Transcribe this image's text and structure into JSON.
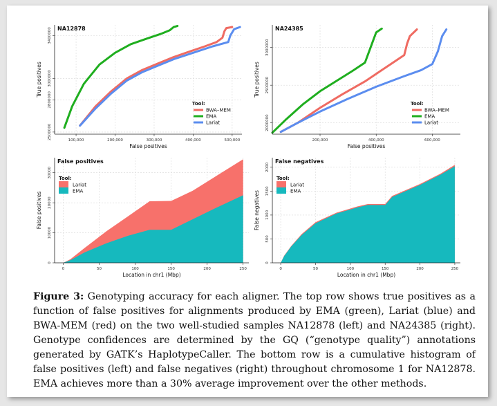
{
  "colors": {
    "bwa": "#ef6b62",
    "ema": "#1fae1f",
    "lariat": "#5b8def",
    "hist_lariat": "#f7716b",
    "hist_ema": "#16b9be",
    "grid": "#d8d8d8",
    "axis": "#222222"
  },
  "chart_data": [
    {
      "type": "line",
      "title": "NA12878",
      "xlabel": "False positives",
      "ylabel": "True positives",
      "xticks": [
        100000,
        200000,
        300000,
        400000,
        500000
      ],
      "xtick_labels": [
        "100,000",
        "200,000",
        "300,000",
        "400,000",
        "500,000"
      ],
      "yticks": [
        2500000,
        2800000,
        3000000,
        3400000
      ],
      "ytick_labels": [
        "2500000",
        "2800000",
        "3000000",
        "3400000"
      ],
      "xlim": [
        45000,
        525000
      ],
      "ylim": [
        2480000,
        3500000
      ],
      "legend_title": "Tool:",
      "legend_position": "right",
      "series": [
        {
          "name": "BWA–MEM",
          "color_key": "bwa",
          "x": [
            110000,
            150000,
            190000,
            230000,
            270000,
            310000,
            350000,
            390000,
            430000,
            460000,
            475000,
            480000,
            485000,
            500000
          ],
          "y": [
            2560000,
            2740000,
            2880000,
            3000000,
            3080000,
            3140000,
            3200000,
            3250000,
            3300000,
            3340000,
            3380000,
            3440000,
            3470000,
            3480000
          ]
        },
        {
          "name": "EMA",
          "color_key": "ema",
          "x": [
            70000,
            90000,
            120000,
            160000,
            200000,
            240000,
            280000,
            320000,
            340000,
            350000,
            360000
          ],
          "y": [
            2540000,
            2740000,
            2950000,
            3130000,
            3240000,
            3320000,
            3370000,
            3420000,
            3450000,
            3480000,
            3490000
          ]
        },
        {
          "name": "Lariat",
          "color_key": "lariat",
          "x": [
            110000,
            150000,
            190000,
            230000,
            270000,
            310000,
            350000,
            400000,
            450000,
            490000,
            495000,
            505000,
            520000
          ],
          "y": [
            2560000,
            2720000,
            2860000,
            2980000,
            3060000,
            3120000,
            3180000,
            3240000,
            3300000,
            3340000,
            3400000,
            3460000,
            3480000
          ]
        }
      ]
    },
    {
      "type": "line",
      "title": "NA24385",
      "xlabel": "False positives",
      "ylabel": "True positives",
      "xticks": [
        200000,
        400000,
        600000
      ],
      "xtick_labels": [
        "200,000",
        "400,000",
        "600,000"
      ],
      "yticks": [
        2000000,
        2500000,
        3000000
      ],
      "ytick_labels": [
        "2000000",
        "2500000",
        "3000000"
      ],
      "xlim": [
        30000,
        700000
      ],
      "ylim": [
        1850000,
        3300000
      ],
      "legend_title": "Tool:",
      "legend_position": "right",
      "series": [
        {
          "name": "BWA–MEM",
          "color_key": "bwa",
          "x": [
            60000,
            120000,
            200000,
            280000,
            360000,
            420000,
            460000,
            500000,
            510000,
            520000,
            545000
          ],
          "y": [
            1880000,
            2000000,
            2200000,
            2380000,
            2550000,
            2700000,
            2800000,
            2900000,
            3050000,
            3150000,
            3240000
          ]
        },
        {
          "name": "EMA",
          "color_key": "ema",
          "x": [
            30000,
            80000,
            140000,
            200000,
            260000,
            320000,
            360000,
            380000,
            390000,
            400000,
            420000
          ],
          "y": [
            1870000,
            2050000,
            2250000,
            2420000,
            2560000,
            2700000,
            2800000,
            3000000,
            3100000,
            3200000,
            3250000
          ]
        },
        {
          "name": "Lariat",
          "color_key": "lariat",
          "x": [
            60000,
            120000,
            200000,
            300000,
            400000,
            500000,
            560000,
            600000,
            620000,
            635000,
            650000
          ],
          "y": [
            1880000,
            2000000,
            2150000,
            2320000,
            2480000,
            2620000,
            2700000,
            2780000,
            2950000,
            3150000,
            3240000
          ]
        }
      ]
    },
    {
      "type": "area",
      "title": "False positives",
      "xlabel": "Location in chr1 (Mbp)",
      "ylabel": "False positives",
      "xticks": [
        0,
        50,
        100,
        150,
        200,
        250
      ],
      "yticks": [
        0,
        10000,
        20000,
        30000
      ],
      "xlim": [
        -12,
        258
      ],
      "ylim": [
        0,
        35000
      ],
      "legend_title": "Tool:",
      "legend_position": "top-left",
      "series": [
        {
          "name": "Lariat",
          "color_key": "hist_lariat",
          "x": [
            0,
            10,
            30,
            60,
            90,
            120,
            150,
            180,
            210,
            250
          ],
          "y": [
            0,
            1200,
            5000,
            10500,
            15500,
            20500,
            20600,
            24000,
            28500,
            34500
          ]
        },
        {
          "name": "EMA",
          "color_key": "hist_ema",
          "x": [
            0,
            10,
            30,
            60,
            90,
            120,
            150,
            180,
            210,
            250
          ],
          "y": [
            0,
            900,
            3500,
            6500,
            9000,
            11000,
            11000,
            14500,
            18000,
            22500
          ]
        }
      ]
    },
    {
      "type": "area",
      "title": "False negatives",
      "xlabel": "Location in chr1 (Mbp)",
      "ylabel": "False negatives",
      "xticks": [
        0,
        50,
        100,
        150,
        200,
        250
      ],
      "yticks": [
        0,
        500,
        1000,
        1500,
        2000
      ],
      "xlim": [
        -12,
        258
      ],
      "ylim": [
        0,
        2200
      ],
      "legend_title": "Tool:",
      "legend_position": "top-left",
      "series": [
        {
          "name": "Lariat",
          "color_key": "hist_lariat",
          "x": [
            0,
            5,
            15,
            30,
            50,
            80,
            110,
            125,
            150,
            160,
            200,
            230,
            250
          ],
          "y": [
            0,
            150,
            350,
            600,
            850,
            1050,
            1180,
            1230,
            1230,
            1400,
            1650,
            1870,
            2050
          ]
        },
        {
          "name": "EMA",
          "color_key": "hist_ema",
          "x": [
            0,
            5,
            15,
            30,
            50,
            80,
            110,
            125,
            150,
            160,
            200,
            230,
            250
          ],
          "y": [
            0,
            140,
            340,
            580,
            830,
            1030,
            1160,
            1210,
            1210,
            1380,
            1630,
            1850,
            2020
          ]
        }
      ]
    }
  ],
  "caption": {
    "label": "Figure 3:",
    "text": " Genotyping accuracy for each aligner. The top row shows true positives as a function of false positives for alignments produced by EMA (green), Lariat (blue) and BWA-MEM (red) on the two well-studied samples NA12878 (left) and NA24385 (right). Genotype confidences are determined by the GQ (“genotype quality”) annotations generated by GATK’s HaplotypeCaller. The bottom row is a cumulative histogram of false positives (left) and false negatives (right) throughout chromosome 1 for NA12878. EMA achieves more than a 30% average improvement over the other methods."
  }
}
